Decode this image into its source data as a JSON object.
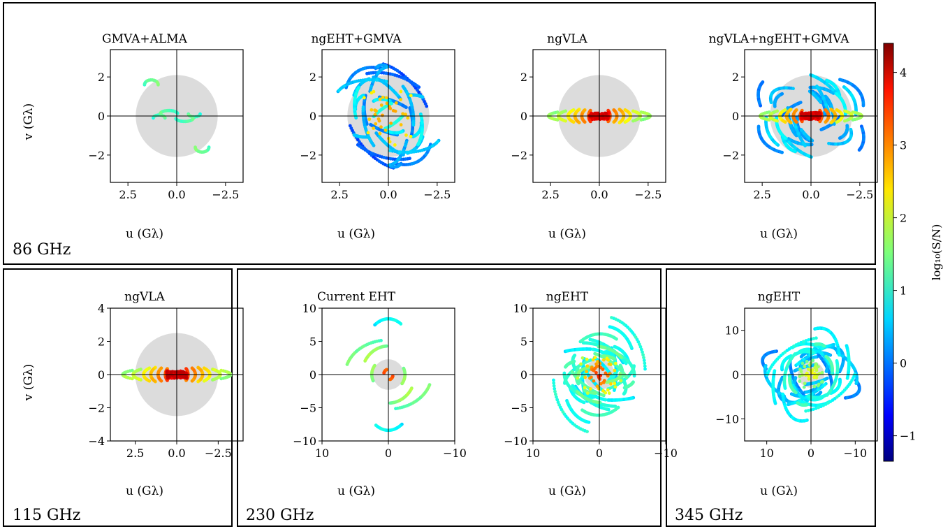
{
  "colorbar": {
    "label": "log₁₀(S/N)",
    "ticks": [
      "4",
      "3",
      "2",
      "1",
      "0",
      "−1"
    ],
    "tick_values": [
      4,
      3,
      2,
      1,
      0,
      -1
    ],
    "range": [
      -1.35,
      4.4
    ],
    "colormap": "jet"
  },
  "groups": [
    {
      "label": "86 GHz"
    },
    {
      "label": "115 GHz"
    },
    {
      "label": "230 GHz"
    },
    {
      "label": "345 GHz"
    }
  ],
  "chart_data": [
    {
      "type": "scatter",
      "group": "86 GHz",
      "title": "GMVA+ALMA",
      "xlabel": "u (Gλ)",
      "ylabel": "v (Gλ)",
      "xlim": [
        3.4,
        -3.4
      ],
      "ylim": [
        -3.4,
        3.4
      ],
      "xticks": [
        "2.5",
        "0.0",
        "−2.5"
      ],
      "yticks": [
        "2",
        "0",
        "−2"
      ],
      "disk_radius": 2.1,
      "config": "gmva",
      "grid": false,
      "legend": "none"
    },
    {
      "type": "scatter",
      "group": "86 GHz",
      "title": "ngEHT+GMVA",
      "xlabel": "u (Gλ)",
      "ylabel": "",
      "xlim": [
        3.4,
        -3.4
      ],
      "ylim": [
        -3.4,
        3.4
      ],
      "xticks": [
        "2.5",
        "0.0",
        "−2.5"
      ],
      "yticks": [
        "2",
        "0",
        "−2"
      ],
      "disk_radius": 2.1,
      "config": "ngeht_gmva",
      "grid": false,
      "legend": "none"
    },
    {
      "type": "scatter",
      "group": "86 GHz",
      "title": "ngVLA",
      "xlabel": "u (Gλ)",
      "ylabel": "",
      "xlim": [
        3.4,
        -3.4
      ],
      "ylim": [
        -3.4,
        3.4
      ],
      "xticks": [
        "2.5",
        "0.0",
        "−2.5"
      ],
      "yticks": [
        "2",
        "0",
        "−2"
      ],
      "disk_radius": 2.1,
      "config": "ngvla",
      "grid": false,
      "legend": "none"
    },
    {
      "type": "scatter",
      "group": "86 GHz",
      "title": "ngVLA+ngEHT+GMVA",
      "xlabel": "u (Gλ)",
      "ylabel": "",
      "xlim": [
        3.4,
        -3.4
      ],
      "ylim": [
        -3.4,
        3.4
      ],
      "xticks": [
        "2.5",
        "0.0",
        "−2.5"
      ],
      "yticks": [
        "2",
        "0",
        "−2"
      ],
      "disk_radius": 2.1,
      "config": "all86",
      "grid": false,
      "legend": "none"
    },
    {
      "type": "scatter",
      "group": "115 GHz",
      "title": "ngVLA",
      "xlabel": "u (Gλ)",
      "ylabel": "v (Gλ)",
      "xlim": [
        4.0,
        -4.0
      ],
      "ylim": [
        -4,
        4
      ],
      "xticks": [
        "2.5",
        "0.0",
        "−2.5"
      ],
      "yticks": [
        "4",
        "2",
        "0",
        "−2",
        "−4"
      ],
      "disk_radius": 2.5,
      "config": "ngvla115",
      "grid": false,
      "legend": "none"
    },
    {
      "type": "scatter",
      "group": "230 GHz",
      "title": "Current EHT",
      "xlabel": "u (Gλ)",
      "ylabel": "",
      "xlim": [
        10,
        -10
      ],
      "ylim": [
        -10,
        10
      ],
      "xticks": [
        "10",
        "0",
        "−10"
      ],
      "yticks": [
        "10",
        "5",
        "0",
        "−5",
        "−10"
      ],
      "disk_radius": 2.3,
      "config": "eht",
      "grid": false,
      "legend": "none"
    },
    {
      "type": "scatter",
      "group": "230 GHz",
      "title": "ngEHT",
      "xlabel": "u (Gλ)",
      "ylabel": "",
      "xlim": [
        10,
        -10
      ],
      "ylim": [
        -10,
        10
      ],
      "xticks": [
        "10",
        "0",
        "−10"
      ],
      "yticks": [
        "10",
        "5",
        "0",
        "−5",
        "−10"
      ],
      "disk_radius": 2.3,
      "config": "ngeht230",
      "grid": false,
      "legend": "none"
    },
    {
      "type": "scatter",
      "group": "345 GHz",
      "title": "ngEHT",
      "xlabel": "u (Gλ)",
      "ylabel": "",
      "xlim": [
        15,
        -15
      ],
      "ylim": [
        -15,
        15
      ],
      "xticks": [
        "−10",
        "0",
        "10"
      ],
      "yticks": [
        "10",
        "0",
        "−10"
      ],
      "disk_radius": 3.0,
      "config": "ngeht345",
      "grid": false,
      "legend": "none"
    }
  ]
}
